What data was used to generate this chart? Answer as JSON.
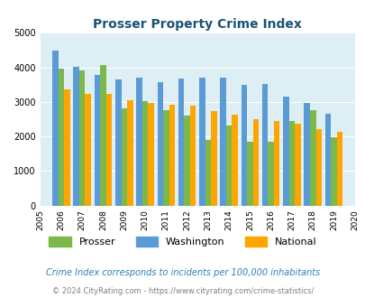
{
  "title": "Prosser Property Crime Index",
  "years": [
    2005,
    2006,
    2007,
    2008,
    2009,
    2010,
    2011,
    2012,
    2013,
    2014,
    2015,
    2016,
    2017,
    2018,
    2019,
    2020
  ],
  "prosser": [
    0,
    3950,
    3920,
    4060,
    2820,
    3030,
    2770,
    2600,
    1900,
    2330,
    1840,
    1840,
    2460,
    2760,
    1980,
    0
  ],
  "washington": [
    0,
    4480,
    4020,
    3790,
    3660,
    3700,
    3570,
    3680,
    3710,
    3700,
    3500,
    3520,
    3160,
    2980,
    2660,
    0
  ],
  "national": [
    0,
    3350,
    3240,
    3220,
    3050,
    2960,
    2930,
    2880,
    2730,
    2620,
    2490,
    2460,
    2360,
    2200,
    2130,
    0
  ],
  "prosser_color": "#7db84a",
  "washington_color": "#5b9bd5",
  "national_color": "#ffa500",
  "bg_color": "#ddeef5",
  "ylim": [
    0,
    5000
  ],
  "yticks": [
    0,
    1000,
    2000,
    3000,
    4000,
    5000
  ],
  "bar_width": 0.28,
  "subtitle": "Crime Index corresponds to incidents per 100,000 inhabitants",
  "footer": "© 2024 CityRating.com - https://www.cityrating.com/crime-statistics/",
  "legend_labels": [
    "Prosser",
    "Washington",
    "National"
  ],
  "title_color": "#1a5276",
  "subtitle_color": "#2980b9",
  "footer_color": "#808080"
}
